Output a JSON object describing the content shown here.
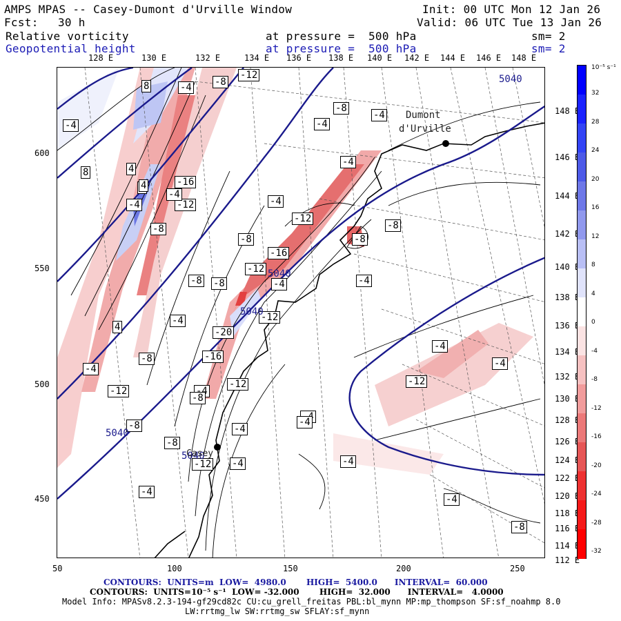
{
  "header": {
    "title": "AMPS MPAS -- Casey-Dumont d'Urville Window",
    "init": "Init: 00 UTC Mon 12 Jan 26",
    "fcst_label": "Fcst:",
    "fcst_value": "30 h",
    "valid": "Valid: 06 UTC Tue 13 Jan 26",
    "field1_name": "Relative vorticity",
    "field1_level": "at pressure =  500 hPa",
    "field1_sm": "sm= 2",
    "field2_name": "Geopotential height",
    "field2_level": "at pressure =  500 hPa",
    "field2_sm": "sm= 2"
  },
  "axes": {
    "top_lon_labels": [
      "128 E",
      "130 E",
      "132 E",
      "134 E",
      "136 E",
      "138 E",
      "140 E",
      "142 E",
      "144 E",
      "146 E",
      "148 E"
    ],
    "right_lon_labels": [
      "148 E",
      "146 E",
      "144 E",
      "142 E",
      "140 E",
      "138 E",
      "136 E",
      "134 E",
      "132 E",
      "130 E",
      "128 E",
      "126 E",
      "124 E",
      "122 E",
      "120 E",
      "118 E",
      "116 E",
      "114 E",
      "112 E"
    ],
    "x_ticks": [
      "50",
      "100",
      "150",
      "200",
      "250"
    ],
    "y_ticks": [
      "600",
      "550",
      "500",
      "450"
    ]
  },
  "places": {
    "dumont_1": "Dumont",
    "dumont_2": "d'Urville",
    "casey": "Casey"
  },
  "colorbar": {
    "unit": "10⁻⁵ s⁻¹",
    "labels": [
      "32",
      "28",
      "24",
      "20",
      "16",
      "12",
      "8",
      "4",
      "0",
      "-4",
      "-8",
      "-12",
      "-16",
      "-20",
      "-24",
      "-28",
      "-32"
    ]
  },
  "contour_labels": {
    "vorticity": [
      "8",
      "-4",
      "-8",
      "-12",
      "-4",
      "8",
      "4",
      "4",
      "4",
      "-4",
      "-16",
      "-12",
      "-8",
      "-4",
      "-8",
      "-12",
      "-16",
      "-12",
      "-8",
      "-8",
      "-4",
      "4",
      "-4",
      "-8",
      "-4",
      "-12",
      "-4",
      "-12",
      "-20",
      "-16",
      "-12",
      "-8",
      "-4",
      "-8",
      "-12",
      "-8",
      "-4",
      "-4",
      "-4",
      "-4",
      "-8",
      "-4",
      "-12",
      "-4",
      "-8",
      "-4",
      "-4",
      "-4",
      "-4",
      "-8",
      "-8",
      "-4",
      "-4",
      "-4"
    ],
    "height": [
      "5040",
      "5040",
      "5040",
      "5040",
      "5040"
    ]
  },
  "footer": {
    "contours1": "CONTOURS:  UNITS=m  LOW=  4980.0       HIGH=  5400.0      INTERVAL=  60.000",
    "contours2": "CONTOURS:  UNITS=10⁻⁵ s⁻¹  LOW= -32.000       HIGH=  32.000      INTERVAL=   4.0000",
    "model_info": "Model Info: MPASv8.2.3-194-gf29cd82c CU:cu_grell_freitas PBL:bl_mynn MP:mp_thompson SF:sf_noahmp 8.0",
    "model_info2": "LW:rrtmg_lw SW:rrtmg_sw SFLAY:sf_mynn"
  },
  "colors": {
    "height_contour": "#1a1a8c",
    "positive_max": "#0000ff",
    "negative_max": "#ff0000",
    "coast": "#000000"
  }
}
